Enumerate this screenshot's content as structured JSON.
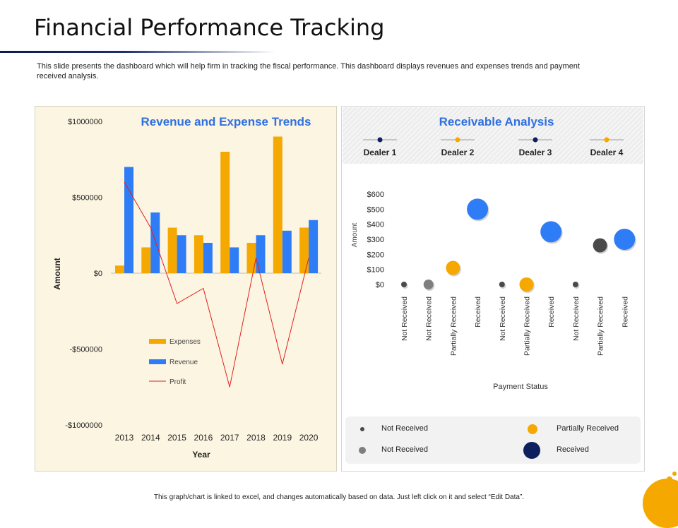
{
  "slide": {
    "title": "Financial Performance Tracking",
    "description": "This slide presents the dashboard which will help firm in tracking the fiscal performance. This dashboard displays revenues and expenses trends and payment received analysis.",
    "footer": "This graph/chart is linked to excel, and changes automatically based on data. Just left click on it and select “Edit Data”."
  },
  "colors": {
    "expenses": "#f5a800",
    "revenue": "#2f7df6",
    "profit": "#e02020",
    "navy": "#0d1f5c",
    "gray_dot": "#7f7f7f",
    "dark_dot": "#4a4a4a"
  },
  "chart_data": [
    {
      "type": "bar",
      "title": "Revenue and Expense Trends",
      "xlabel": "Year",
      "ylabel": "Amount",
      "categories": [
        "2013",
        "2014",
        "2015",
        "2016",
        "2017",
        "2018",
        "2019",
        "2020"
      ],
      "ylim": [
        -1000000,
        1000000
      ],
      "yticks": [
        1000000,
        500000,
        0,
        -500000,
        -1000000
      ],
      "ytick_labels": [
        "$1000000",
        "$500000",
        "$0",
        "-$500000",
        "-$1000000"
      ],
      "series": [
        {
          "name": "Expenses",
          "type": "bar",
          "values": [
            50000,
            170000,
            300000,
            250000,
            800000,
            200000,
            900000,
            300000
          ]
        },
        {
          "name": "Revenue",
          "type": "bar",
          "values": [
            700000,
            400000,
            250000,
            200000,
            170000,
            250000,
            280000,
            350000
          ]
        },
        {
          "name": "Profit",
          "type": "line",
          "values": [
            600000,
            300000,
            -200000,
            -100000,
            -750000,
            100000,
            -600000,
            100000
          ]
        }
      ],
      "legend": "bottom-left"
    },
    {
      "type": "scatter",
      "title": "Receivable Analysis",
      "dealers": [
        "Dealer 1",
        "Dealer 2",
        "Dealer 3",
        "Dealer 4"
      ],
      "xlabel": "Payment Status",
      "ylabel": "Amount",
      "ylim": [
        0,
        600
      ],
      "yticks": [
        0,
        100,
        200,
        300,
        400,
        500,
        600
      ],
      "ytick_labels": [
        "$0",
        "$100",
        "$200",
        "$300",
        "$400",
        "$500",
        "$600"
      ],
      "categories": [
        "Not Received",
        "Not Received",
        "Partially Received",
        "Received",
        "Not Received",
        "Partially Received",
        "Received",
        "Not Received",
        "Partially Received",
        "Received"
      ],
      "points": [
        {
          "status": "Not Received",
          "value": 0,
          "kind": "small"
        },
        {
          "status": "Not Received",
          "value": 0,
          "kind": "gray"
        },
        {
          "status": "Partially Received",
          "value": 110,
          "kind": "partial"
        },
        {
          "status": "Received",
          "value": 500,
          "kind": "received"
        },
        {
          "status": "Not Received",
          "value": 0,
          "kind": "small"
        },
        {
          "status": "Partially Received",
          "value": 0,
          "kind": "partial"
        },
        {
          "status": "Received",
          "value": 350,
          "kind": "received"
        },
        {
          "status": "Not Received",
          "value": 0,
          "kind": "small"
        },
        {
          "status": "Partially Received",
          "value": 260,
          "kind": "dark"
        },
        {
          "status": "Received",
          "value": 300,
          "kind": "received"
        }
      ],
      "legend": [
        {
          "label": "Not Received",
          "kind": "small"
        },
        {
          "label": "Partially Received",
          "kind": "partial"
        },
        {
          "label": "Not Received",
          "kind": "gray"
        },
        {
          "label": "Received",
          "kind": "navy"
        }
      ]
    }
  ]
}
